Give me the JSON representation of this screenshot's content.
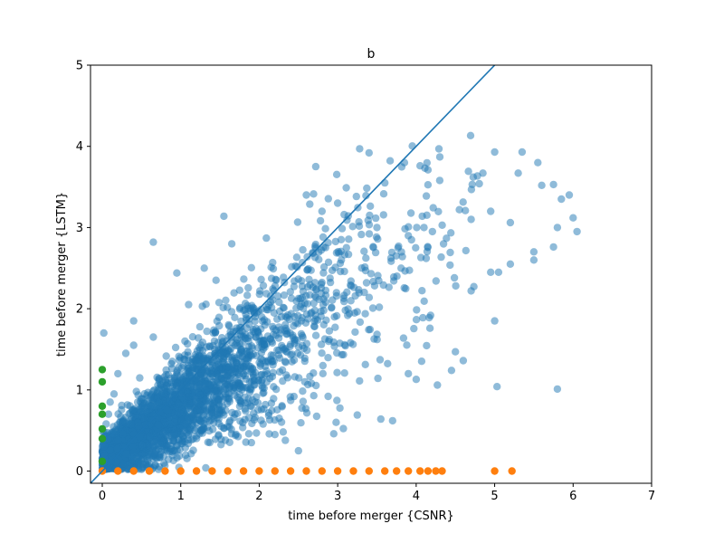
{
  "chart_data": {
    "type": "scatter",
    "title": "b",
    "xlabel": "time before merger {CSNR}",
    "ylabel": "time before merger {LSTM}",
    "xlim": [
      -0.15,
      7
    ],
    "ylim": [
      -0.15,
      5
    ],
    "xticks": [
      0,
      1,
      2,
      3,
      4,
      5,
      6,
      7
    ],
    "yticks": [
      0,
      1,
      2,
      3,
      4,
      5
    ],
    "grid": false,
    "legend": "none",
    "reference_line": {
      "x": [
        -0.15,
        5.02
      ],
      "y": [
        -0.15,
        5.02
      ],
      "color": "#1f77b4"
    },
    "series": [
      {
        "color": "#1f77b4",
        "opacity": 0.5,
        "points": [
          [
            0.02,
            1.7
          ],
          [
            0.65,
            2.82
          ],
          [
            1.55,
            3.14
          ],
          [
            3.28,
            3.97
          ],
          [
            3.4,
            3.92
          ],
          [
            2.72,
            3.75
          ],
          [
            4.05,
            3.76
          ],
          [
            4.15,
            3.71
          ],
          [
            5.0,
            3.93
          ],
          [
            5.35,
            3.93
          ],
          [
            5.55,
            3.8
          ],
          [
            4.85,
            3.67
          ],
          [
            5.3,
            3.67
          ],
          [
            5.6,
            3.52
          ],
          [
            5.75,
            3.53
          ],
          [
            5.95,
            3.4
          ],
          [
            5.85,
            3.35
          ],
          [
            6.0,
            3.12
          ],
          [
            6.05,
            2.95
          ],
          [
            5.8,
            3.0
          ],
          [
            5.5,
            2.6
          ],
          [
            5.5,
            2.7
          ],
          [
            5.75,
            2.76
          ],
          [
            5.2,
            2.55
          ],
          [
            5.05,
            2.45
          ],
          [
            4.95,
            2.45
          ],
          [
            4.7,
            2.22
          ],
          [
            5.0,
            1.85
          ],
          [
            5.8,
            1.01
          ],
          [
            5.03,
            1.04
          ],
          [
            4.6,
            1.36
          ],
          [
            4.5,
            1.47
          ],
          [
            4.45,
            1.24
          ],
          [
            4.27,
            1.06
          ],
          [
            4.0,
            1.13
          ],
          [
            3.9,
            1.2
          ],
          [
            3.7,
            0.62
          ],
          [
            3.55,
            0.64
          ],
          [
            3.25,
            0.69
          ],
          [
            2.95,
            0.46
          ],
          [
            2.5,
            0.25
          ],
          [
            2.2,
            0.45
          ],
          [
            1.9,
            0.35
          ],
          [
            0.65,
            1.65
          ],
          [
            0.4,
            1.85
          ],
          [
            0.4,
            1.55
          ],
          [
            0.3,
            1.45
          ],
          [
            0.2,
            1.2
          ],
          [
            0.15,
            0.95
          ],
          [
            0.1,
            0.85
          ],
          [
            0.08,
            0.7
          ],
          [
            0.05,
            0.58
          ],
          [
            0.95,
            2.44
          ],
          [
            1.3,
            2.5
          ],
          [
            1.45,
            2.35
          ],
          [
            1.65,
            2.8
          ],
          [
            1.1,
            2.05
          ],
          [
            2.6,
            3.4
          ],
          [
            2.8,
            3.2
          ],
          [
            3.0,
            3.3
          ],
          [
            3.6,
            3.55
          ],
          [
            3.85,
            3.8
          ],
          [
            4.3,
            3.58
          ],
          [
            4.55,
            3.22
          ],
          [
            4.7,
            3.1
          ],
          [
            4.95,
            3.2
          ],
          [
            5.2,
            3.06
          ],
          [
            3.5,
            3.0
          ],
          [
            3.9,
            2.9
          ],
          [
            4.1,
            3.0
          ]
        ]
      },
      {
        "color": "#ff7f0e",
        "points": [
          [
            0.0,
            0.0
          ],
          [
            0.2,
            0.0
          ],
          [
            0.4,
            0.0
          ],
          [
            0.6,
            0.0
          ],
          [
            0.8,
            0.0
          ],
          [
            1.0,
            0.0
          ],
          [
            1.2,
            0.0
          ],
          [
            1.4,
            0.0
          ],
          [
            1.6,
            0.0
          ],
          [
            1.8,
            0.0
          ],
          [
            2.0,
            0.0
          ],
          [
            2.2,
            0.0
          ],
          [
            2.4,
            0.0
          ],
          [
            2.6,
            0.0
          ],
          [
            2.8,
            0.0
          ],
          [
            3.0,
            0.0
          ],
          [
            3.2,
            0.0
          ],
          [
            3.4,
            0.0
          ],
          [
            3.6,
            0.0
          ],
          [
            3.75,
            0.0
          ],
          [
            3.9,
            0.0
          ],
          [
            4.05,
            0.0
          ],
          [
            4.15,
            0.0
          ],
          [
            4.25,
            0.0
          ],
          [
            4.33,
            0.0
          ],
          [
            5.0,
            0.0
          ],
          [
            5.22,
            0.0
          ]
        ]
      },
      {
        "color": "#2ca02c",
        "points": [
          [
            0.0,
            1.25
          ],
          [
            0.0,
            1.1
          ],
          [
            0.0,
            0.8
          ],
          [
            0.0,
            0.7
          ],
          [
            0.0,
            0.52
          ],
          [
            0.0,
            0.4
          ],
          [
            0.0,
            0.12
          ]
        ]
      }
    ]
  }
}
